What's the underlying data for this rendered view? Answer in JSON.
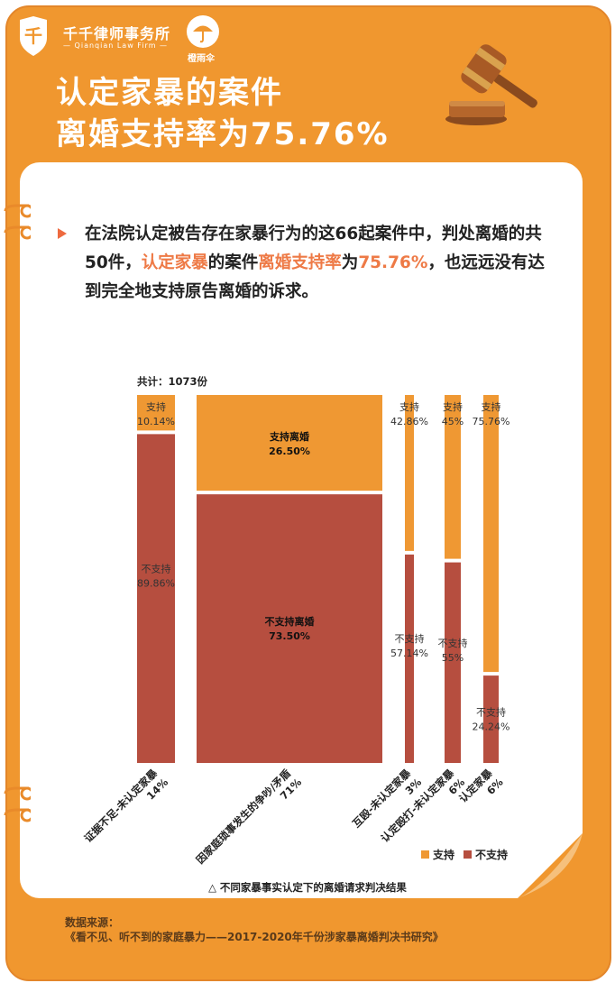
{
  "brand": {
    "name": "千千律师事务所",
    "sub": "— Qianqian Law Firm —",
    "shield_glyph": "千",
    "partner": "橙雨伞"
  },
  "headline": {
    "line1": "认定家暴的案件",
    "line2": "离婚支持率为75.76%"
  },
  "intro": {
    "p1": "在法院认定被告存在家暴行为的这66起案件中，判处离婚的共50件，",
    "hl1": "认定家暴",
    "p2": "的案件",
    "hl2": "离婚支持率",
    "p3": "为",
    "hl3": "75.76%",
    "p4": "，也远远没有达到完全地支持原告离婚的诉求。"
  },
  "colors": {
    "support": "#ef9833",
    "not_support": "#b64e3f",
    "frame": "#f0972f",
    "highlight": "#ee7a46"
  },
  "chart_data": {
    "type": "bar",
    "subtype": "mekko",
    "total_label": "共计：1073份",
    "categories": [
      {
        "name": "证据不足-未认定家暴",
        "share_label": "14%",
        "share": 14,
        "support": 10.14,
        "not_support": 89.86,
        "support_label": "支持",
        "not_support_label": "不支持",
        "support_value_label": "10.14%",
        "not_support_value_label": "89.86%"
      },
      {
        "name": "因家庭琐事发生的争吵/矛盾",
        "share_label": "71%",
        "share": 71,
        "support": 26.5,
        "not_support": 73.5,
        "support_label": "支持离婚",
        "not_support_label": "不支持离婚",
        "support_value_label": "26.50%",
        "not_support_value_label": "73.50%"
      },
      {
        "name": "互殴-未认定家暴",
        "share_label": "3%",
        "share": 3,
        "support": 42.86,
        "not_support": 57.14,
        "support_label": "支持",
        "not_support_label": "不支持",
        "support_value_label": "42.86%",
        "not_support_value_label": "57.14%"
      },
      {
        "name": "认定殴打-未认定家暴",
        "share_label": "6%",
        "share": 6,
        "support": 45,
        "not_support": 55,
        "support_label": "支持",
        "not_support_label": "不支持",
        "support_value_label": "45%",
        "not_support_value_label": "55%"
      },
      {
        "name": "认定家暴",
        "share_label": "6%",
        "share": 6,
        "support": 75.76,
        "not_support": 24.24,
        "support_label": "支持",
        "not_support_label": "不支持",
        "support_value_label": "75.76%",
        "not_support_value_label": "24.24%"
      }
    ],
    "series": [
      {
        "name": "支持",
        "color": "#ef9833"
      },
      {
        "name": "不支持",
        "color": "#b64e3f"
      }
    ],
    "legend_position": "bottom-right",
    "caption": "△ 不同家暴事实认定下的离婚请求判决结果"
  },
  "source": {
    "label": "数据来源：",
    "text": "《看不见、听不到的家庭暴力——2017-2020年千份涉家暴离婚判决书研究》"
  }
}
